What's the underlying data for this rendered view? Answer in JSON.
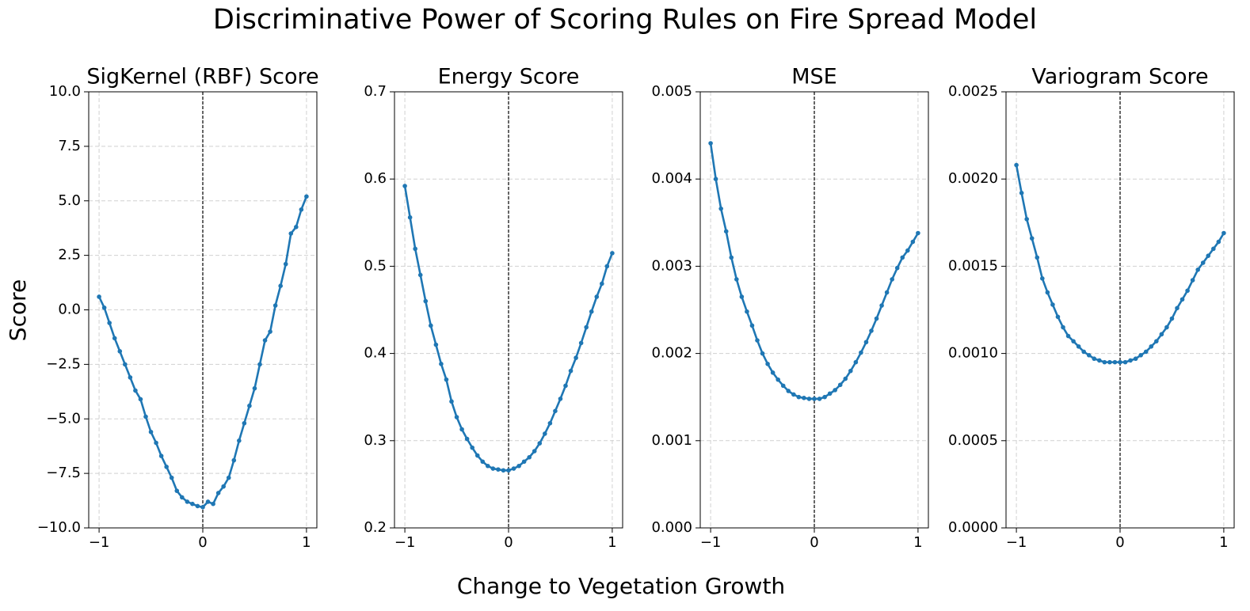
{
  "title": "Discriminative Power of Scoring Rules on Fire Spread Model",
  "xlabel": "Change to Vegetation Growth",
  "ylabel": "Score",
  "chart_data": [
    {
      "type": "line",
      "title": "SigKernel (RBF) Score",
      "color": "#1f77b4",
      "grid": true,
      "vline": 0,
      "x": [
        -1,
        -0.95,
        -0.9,
        -0.85,
        -0.8,
        -0.75,
        -0.7,
        -0.65,
        -0.6,
        -0.55,
        -0.5,
        -0.45,
        -0.4,
        -0.35,
        -0.3,
        -0.25,
        -0.2,
        -0.15,
        -0.1,
        -0.05,
        0,
        0.05,
        0.1,
        0.15,
        0.2,
        0.25,
        0.3,
        0.35,
        0.4,
        0.45,
        0.5,
        0.55,
        0.6,
        0.65,
        0.7,
        0.75,
        0.8,
        0.85,
        0.9,
        0.95,
        1
      ],
      "values": [
        0.6,
        0.1,
        -0.6,
        -1.3,
        -1.9,
        -2.5,
        -3.1,
        -3.7,
        -4.1,
        -4.9,
        -5.6,
        -6.1,
        -6.7,
        -7.2,
        -7.7,
        -8.3,
        -8.6,
        -8.8,
        -8.9,
        -9.0,
        -9.05,
        -8.8,
        -8.9,
        -8.4,
        -8.1,
        -7.7,
        -6.9,
        -6.0,
        -5.2,
        -4.4,
        -3.6,
        -2.5,
        -1.4,
        -1.0,
        0.2,
        1.1,
        2.1,
        3.5,
        3.8,
        4.6,
        5.2
      ],
      "xlim": [
        -1.1,
        1.1
      ],
      "ylim": [
        -10,
        10
      ],
      "xticks": [
        {
          "value": -1,
          "label": "−1"
        },
        0,
        1
      ],
      "yticks": [
        {
          "value": -10,
          "label": "−10.0"
        },
        {
          "value": -7.5,
          "label": "−7.5"
        },
        {
          "value": -5,
          "label": "−5.0"
        },
        {
          "value": -2.5,
          "label": "−2.5"
        },
        {
          "value": 0,
          "label": "0.0"
        },
        2.5,
        {
          "value": 5,
          "label": "5.0"
        },
        7.5,
        {
          "value": 10,
          "label": "10.0"
        }
      ]
    },
    {
      "type": "line",
      "title": "Energy Score",
      "color": "#1f77b4",
      "grid": true,
      "vline": 0,
      "x": [
        -1,
        -0.95,
        -0.9,
        -0.85,
        -0.8,
        -0.75,
        -0.7,
        -0.65,
        -0.6,
        -0.55,
        -0.5,
        -0.45,
        -0.4,
        -0.35,
        -0.3,
        -0.25,
        -0.2,
        -0.15,
        -0.1,
        -0.05,
        0,
        0.05,
        0.1,
        0.15,
        0.2,
        0.25,
        0.3,
        0.35,
        0.4,
        0.45,
        0.5,
        0.55,
        0.6,
        0.65,
        0.7,
        0.75,
        0.8,
        0.85,
        0.9,
        0.95,
        1
      ],
      "values": [
        0.592,
        0.556,
        0.52,
        0.49,
        0.46,
        0.432,
        0.41,
        0.388,
        0.37,
        0.345,
        0.327,
        0.313,
        0.302,
        0.292,
        0.283,
        0.276,
        0.271,
        0.268,
        0.267,
        0.266,
        0.266,
        0.268,
        0.271,
        0.276,
        0.281,
        0.288,
        0.297,
        0.308,
        0.32,
        0.334,
        0.348,
        0.363,
        0.38,
        0.395,
        0.412,
        0.43,
        0.448,
        0.465,
        0.48,
        0.5,
        0.515
      ],
      "xlim": [
        -1.1,
        1.1
      ],
      "ylim": [
        0.2,
        0.7
      ],
      "xticks": [
        {
          "value": -1,
          "label": "−1"
        },
        0,
        1
      ],
      "yticks": [
        0.2,
        0.3,
        0.4,
        0.5,
        0.6,
        0.7
      ]
    },
    {
      "type": "line",
      "title": "MSE",
      "color": "#1f77b4",
      "grid": true,
      "vline": 0,
      "x": [
        -1,
        -0.95,
        -0.9,
        -0.85,
        -0.8,
        -0.75,
        -0.7,
        -0.65,
        -0.6,
        -0.55,
        -0.5,
        -0.45,
        -0.4,
        -0.35,
        -0.3,
        -0.25,
        -0.2,
        -0.15,
        -0.1,
        -0.05,
        0,
        0.05,
        0.1,
        0.15,
        0.2,
        0.25,
        0.3,
        0.35,
        0.4,
        0.45,
        0.5,
        0.55,
        0.6,
        0.65,
        0.7,
        0.75,
        0.8,
        0.85,
        0.9,
        0.95,
        1
      ],
      "values": [
        0.00441,
        0.004,
        0.00366,
        0.0034,
        0.0031,
        0.00285,
        0.00265,
        0.00248,
        0.00232,
        0.00215,
        0.002,
        0.00188,
        0.00178,
        0.0017,
        0.00163,
        0.00157,
        0.00153,
        0.0015,
        0.00149,
        0.00148,
        0.00148,
        0.00148,
        0.0015,
        0.00154,
        0.00158,
        0.00164,
        0.00171,
        0.0018,
        0.0019,
        0.00201,
        0.00213,
        0.00226,
        0.0024,
        0.00255,
        0.0027,
        0.00285,
        0.00298,
        0.0031,
        0.00318,
        0.00328,
        0.00338
      ],
      "xlim": [
        -1.1,
        1.1
      ],
      "ylim": [
        0,
        0.005
      ],
      "xticks": [
        {
          "value": -1,
          "label": "−1"
        },
        0,
        1
      ],
      "yticks": [
        {
          "value": 0,
          "label": "0.000"
        },
        0.001,
        0.002,
        0.003,
        0.004,
        0.005
      ]
    },
    {
      "type": "line",
      "title": "Variogram Score",
      "color": "#1f77b4",
      "grid": true,
      "vline": 0,
      "x": [
        -1,
        -0.95,
        -0.9,
        -0.85,
        -0.8,
        -0.75,
        -0.7,
        -0.65,
        -0.6,
        -0.55,
        -0.5,
        -0.45,
        -0.4,
        -0.35,
        -0.3,
        -0.25,
        -0.2,
        -0.15,
        -0.1,
        -0.05,
        0,
        0.05,
        0.1,
        0.15,
        0.2,
        0.25,
        0.3,
        0.35,
        0.4,
        0.45,
        0.5,
        0.55,
        0.6,
        0.65,
        0.7,
        0.75,
        0.8,
        0.85,
        0.9,
        0.95,
        1
      ],
      "values": [
        0.00208,
        0.00192,
        0.00177,
        0.00166,
        0.00155,
        0.00143,
        0.00135,
        0.00128,
        0.00121,
        0.00115,
        0.0011,
        0.00107,
        0.00104,
        0.00101,
        0.00099,
        0.00097,
        0.00096,
        0.00095,
        0.00095,
        0.00095,
        0.00095,
        0.00095,
        0.00096,
        0.00097,
        0.00099,
        0.00101,
        0.00104,
        0.00107,
        0.00111,
        0.00115,
        0.0012,
        0.00126,
        0.00131,
        0.00136,
        0.00142,
        0.00148,
        0.00152,
        0.00156,
        0.0016,
        0.00164,
        0.00169
      ],
      "xlim": [
        -1.1,
        1.1
      ],
      "ylim": [
        0,
        0.0025
      ],
      "xticks": [
        {
          "value": -1,
          "label": "−1"
        },
        0,
        1
      ],
      "yticks": [
        {
          "value": 0,
          "label": "0.0000"
        },
        {
          "value": 0.0005,
          "label": "0.0005"
        },
        {
          "value": 0.001,
          "label": "0.0010"
        },
        {
          "value": 0.0015,
          "label": "0.0015"
        },
        {
          "value": 0.002,
          "label": "0.0020"
        },
        {
          "value": 0.0025,
          "label": "0.0025"
        }
      ]
    }
  ]
}
